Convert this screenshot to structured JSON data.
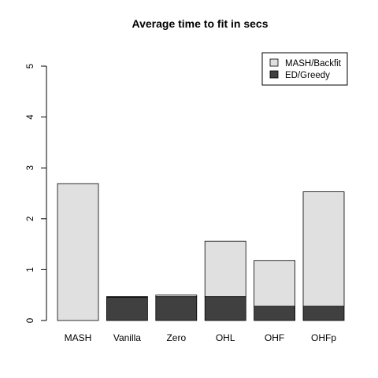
{
  "chart_data": {
    "type": "bar",
    "stacked": true,
    "title": "Average time to fit in secs",
    "xlabel": "",
    "ylabel": "",
    "ylim": [
      0,
      5
    ],
    "yticks": [
      0,
      1,
      2,
      3,
      4,
      5
    ],
    "categories": [
      "MASH",
      "Vanilla",
      "Zero",
      "OHL",
      "OHF",
      "OHFp"
    ],
    "series": [
      {
        "name": "ED/Greedy",
        "color": "#404040",
        "values": [
          0.0,
          0.46,
          0.47,
          0.47,
          0.28,
          0.28
        ]
      },
      {
        "name": "MASH/Backfit",
        "color": "#e0e0e0",
        "values": [
          2.69,
          0.01,
          0.03,
          1.09,
          0.9,
          2.25
        ]
      }
    ],
    "legend": {
      "position": "top-right",
      "entries": [
        "MASH/Backfit",
        "ED/Greedy"
      ]
    }
  }
}
